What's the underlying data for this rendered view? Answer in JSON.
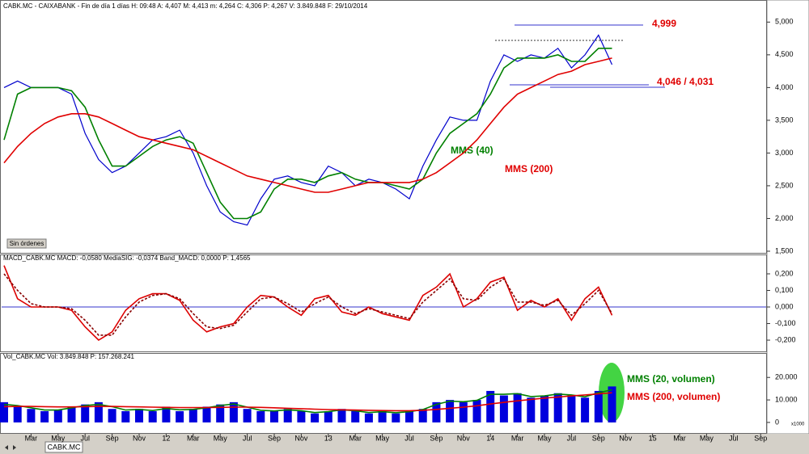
{
  "chart_data": [
    {
      "type": "line",
      "title": "CABK.MC - CAIXABANK - Fin de día 1 días  H: 09:48  A: 4,407  M: 4,413  m: 4,264  C: 4,306  P: 4,267  V: 3.849.848  F: 29/10/2014",
      "ylim": [
        1.475,
        5.325
      ],
      "yticks": [
        {
          "value": 1.5,
          "label": "1,500"
        },
        {
          "value": 2,
          "label": "2,000"
        },
        {
          "value": 2.5,
          "label": "2,500"
        },
        {
          "value": 3,
          "label": "3,000"
        },
        {
          "value": 3.5,
          "label": "3,500"
        },
        {
          "value": 4,
          "label": "4,000"
        },
        {
          "value": 4.5,
          "label": "4,500"
        },
        {
          "value": 5,
          "label": "5,000"
        }
      ],
      "annotations": [
        "4,999",
        "4,046 / 4,031"
      ],
      "button": "Sin órdenes",
      "series": [
        {
          "color": "#0000cc",
          "values": [
            4.0,
            4.1,
            4.0,
            4.0,
            4.0,
            3.9,
            3.3,
            2.9,
            2.7,
            2.8,
            3.0,
            3.2,
            3.25,
            3.35,
            3.0,
            2.5,
            2.1,
            1.95,
            1.9,
            2.3,
            2.6,
            2.65,
            2.55,
            2.5,
            2.8,
            2.7,
            2.5,
            2.6,
            2.55,
            2.45,
            2.3,
            2.8,
            3.2,
            3.55,
            3.5,
            3.5,
            4.1,
            4.5,
            4.4,
            4.5,
            4.45,
            4.6,
            4.3,
            4.5,
            4.8,
            4.35,
            null,
            null,
            null,
            null,
            null,
            null,
            null,
            null,
            null,
            null,
            null
          ]
        },
        {
          "name": "MMS (40)",
          "color": "#008000",
          "values": [
            3.2,
            3.9,
            4.0,
            4.0,
            4.0,
            3.95,
            3.7,
            3.2,
            2.8,
            2.8,
            2.95,
            3.1,
            3.2,
            3.25,
            3.15,
            2.7,
            2.25,
            2.0,
            2.0,
            2.1,
            2.45,
            2.6,
            2.6,
            2.55,
            2.65,
            2.7,
            2.6,
            2.55,
            2.55,
            2.5,
            2.45,
            2.6,
            3.0,
            3.3,
            3.45,
            3.6,
            3.9,
            4.3,
            4.45,
            4.45,
            4.45,
            4.5,
            4.4,
            4.4,
            4.6,
            4.6,
            null,
            null,
            null,
            null,
            null,
            null,
            null,
            null,
            null,
            null,
            null
          ]
        },
        {
          "name": "MMS (200)",
          "color": "#e00000",
          "values": [
            2.85,
            3.1,
            3.3,
            3.45,
            3.55,
            3.6,
            3.6,
            3.55,
            3.45,
            3.35,
            3.25,
            3.2,
            3.15,
            3.1,
            3.05,
            2.95,
            2.85,
            2.75,
            2.65,
            2.6,
            2.55,
            2.5,
            2.45,
            2.4,
            2.4,
            2.45,
            2.5,
            2.55,
            2.55,
            2.55,
            2.55,
            2.6,
            2.7,
            2.85,
            3.0,
            3.2,
            3.45,
            3.7,
            3.9,
            4.0,
            4.1,
            4.2,
            4.25,
            4.35,
            4.4,
            4.45,
            null,
            null,
            null,
            null,
            null,
            null,
            null,
            null,
            null,
            null,
            null
          ]
        }
      ]
    },
    {
      "type": "line",
      "title": "MACD_CABK.MC  MACD: -0,0580  MediaSIG: -0,0374  Band_MACD: 0,0000  P: 1,4565",
      "ylim": [
        -0.268,
        0.312
      ],
      "yticks": [
        {
          "value": -0.2,
          "label": "-0,200"
        },
        {
          "value": -0.1,
          "label": "-0,100"
        },
        {
          "value": 0,
          "label": "0,000"
        },
        {
          "value": 0.1,
          "label": "0,100"
        },
        {
          "value": 0.2,
          "label": "0,200"
        }
      ],
      "band": 0,
      "band_color": "#3333cc",
      "series": [
        {
          "color": "#dd0000",
          "values": [
            0.25,
            0.05,
            0.0,
            0.0,
            0.0,
            -0.02,
            -0.12,
            -0.2,
            -0.15,
            -0.02,
            0.05,
            0.08,
            0.08,
            0.04,
            -0.08,
            -0.15,
            -0.12,
            -0.1,
            0.0,
            0.07,
            0.06,
            0.0,
            -0.05,
            0.05,
            0.07,
            -0.03,
            -0.05,
            0.0,
            -0.04,
            -0.06,
            -0.08,
            0.07,
            0.12,
            0.2,
            0.0,
            0.05,
            0.15,
            0.18,
            -0.02,
            0.04,
            0.0,
            0.05,
            -0.08,
            0.05,
            0.12,
            -0.05,
            null,
            null,
            null,
            null,
            null,
            null,
            null,
            null,
            null,
            null,
            null
          ]
        },
        {
          "color": "#880000",
          "dash": true,
          "values": [
            0.2,
            0.1,
            0.02,
            0.0,
            0.0,
            -0.01,
            -0.08,
            -0.17,
            -0.17,
            -0.06,
            0.03,
            0.07,
            0.08,
            0.05,
            -0.04,
            -0.12,
            -0.13,
            -0.11,
            -0.03,
            0.05,
            0.06,
            0.02,
            -0.03,
            0.02,
            0.06,
            0.0,
            -0.04,
            -0.01,
            -0.03,
            -0.05,
            -0.07,
            0.03,
            0.1,
            0.17,
            0.05,
            0.04,
            0.12,
            0.17,
            0.03,
            0.03,
            0.01,
            0.04,
            -0.05,
            0.02,
            0.1,
            -0.04,
            null,
            null,
            null,
            null,
            null,
            null,
            null,
            null,
            null,
            null,
            null
          ]
        }
      ]
    },
    {
      "type": "line",
      "title": "Vol_CABK.MC  Vol: 3.849.848  P: 157.268.241",
      "ylim": [
        -4700,
        30500
      ],
      "yticks": [
        0,
        {
          "value": 10000,
          "label": "10.000"
        },
        {
          "value": 20000,
          "label": "20.000"
        }
      ],
      "unit_label": "x1000",
      "categories": [
        null,
        null,
        "Mar",
        null,
        "May",
        null,
        "Jul",
        null,
        "Sep",
        null,
        "Nov",
        null,
        "12",
        null,
        "Mar",
        null,
        "May",
        null,
        "Jul",
        null,
        "Sep",
        null,
        "Nov",
        null,
        "13",
        null,
        "Mar",
        null,
        "May",
        null,
        "Jul",
        null,
        "Sep",
        null,
        "Nov",
        null,
        "14",
        null,
        "Mar",
        null,
        "May",
        null,
        "Jul",
        null,
        "Sep",
        null,
        "Nov",
        null,
        "15",
        null,
        "Mar",
        null,
        "May",
        null,
        "Jul",
        null,
        "Sep"
      ],
      "tab": "CABK.MC",
      "series": [
        {
          "type": "bar",
          "color": "#0000dd",
          "values": [
            9000,
            7000,
            6000,
            5000,
            5500,
            7000,
            8000,
            9000,
            6000,
            5000,
            6000,
            5000,
            7000,
            5000,
            6000,
            7000,
            8000,
            9000,
            6000,
            5000,
            5000,
            6000,
            5000,
            4000,
            5000,
            6000,
            5000,
            4000,
            5000,
            4000,
            5000,
            6000,
            9000,
            10000,
            9000,
            10000,
            14000,
            12000,
            13000,
            11000,
            12000,
            13000,
            12000,
            11000,
            14000,
            16000,
            null,
            null,
            null,
            null,
            null,
            null,
            null,
            null,
            null,
            null,
            null
          ]
        },
        {
          "name": "MMS (20, volumen)",
          "color": "#008000",
          "values": [
            8000,
            7500,
            6500,
            5500,
            5500,
            6500,
            7500,
            8000,
            7000,
            5500,
            5800,
            5300,
            6200,
            5600,
            5800,
            6500,
            7500,
            8200,
            6800,
            5400,
            5100,
            5600,
            5200,
            4400,
            4800,
            5600,
            5200,
            4400,
            4800,
            4300,
            4800,
            5700,
            8000,
            9500,
            9200,
            9800,
            12500,
            12500,
            12800,
            11500,
            11800,
            12600,
            12200,
            11400,
            13200,
            14500,
            null,
            null,
            null,
            null,
            null,
            null,
            null,
            null,
            null,
            null,
            null
          ]
        },
        {
          "name": "MMS (200, volumen)",
          "color": "#e00000",
          "values": [
            7000,
            7100,
            7100,
            7000,
            6900,
            6900,
            7000,
            7100,
            7100,
            7000,
            6900,
            6800,
            6700,
            6600,
            6600,
            6600,
            6700,
            6800,
            6800,
            6700,
            6500,
            6300,
            6100,
            5900,
            5700,
            5600,
            5500,
            5400,
            5300,
            5200,
            5200,
            5400,
            5800,
            6300,
            6800,
            7400,
            8200,
            8900,
            9600,
            10200,
            10800,
            11300,
            11800,
            12200,
            12700,
            13200,
            null,
            null,
            null,
            null,
            null,
            null,
            null,
            null,
            null,
            null,
            null
          ]
        }
      ]
    }
  ]
}
